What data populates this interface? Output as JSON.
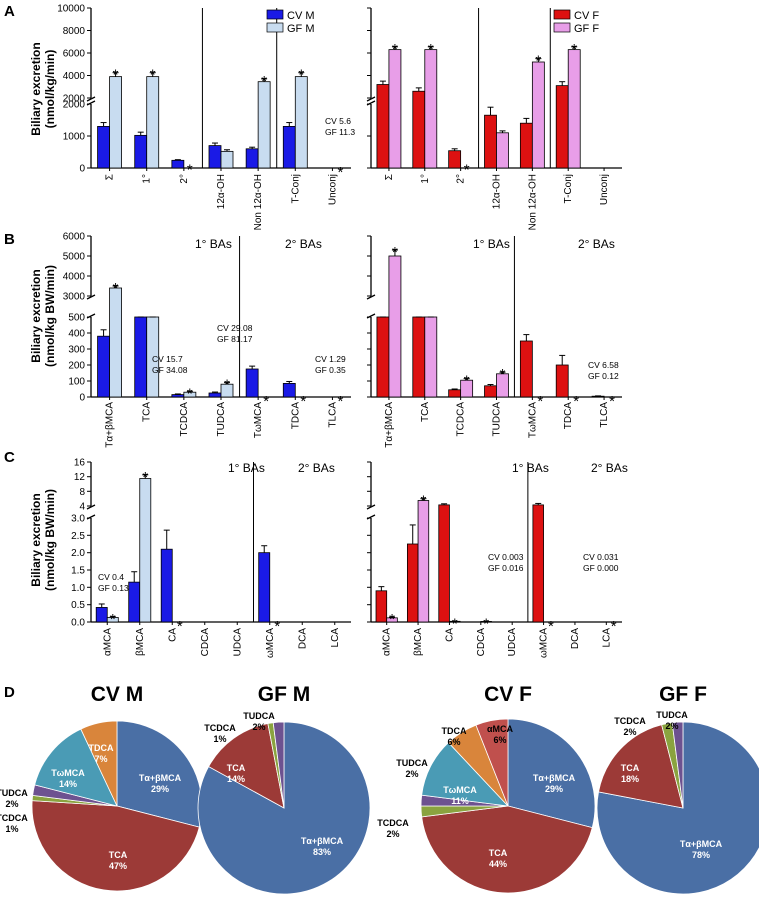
{
  "colors": {
    "cv_m": "#1a1ae6",
    "gf_m": "#c8dcf0",
    "cv_f": "#dd1111",
    "gf_f": "#e89ee8",
    "pie": {
      "Tα+βMCA": "#4a6fa5",
      "TCA": "#9c3a37",
      "TCDCA": "#8aa33f",
      "TUDCA": "#6d5290",
      "TωMCA": "#4a9bb5",
      "TDCA": "#d9853b",
      "αMCA": "#c0504d"
    }
  },
  "panel_letters": {
    "a": "A",
    "b": "B",
    "c": "C",
    "d": "D"
  },
  "axis_labels": {
    "a_y": [
      "Biliary excretion",
      "(nmol/kg/min)"
    ],
    "b_y": [
      "Biliary excretion",
      "(nmol/kg BW/min)"
    ],
    "c_y": [
      "Biliary excretion",
      "(nmol/kg BW/min)"
    ]
  },
  "section_labels": {
    "primary": "1° BAs",
    "secondary": "2° BAs"
  },
  "chart_data": [
    {
      "id": "A-male",
      "type": "bar",
      "title": "",
      "ylabel": "Biliary excretion (nmol/kg/min)",
      "legend": [
        "CV M",
        "GF M"
      ],
      "categories": [
        "Σ",
        "1°",
        "2°",
        "12α-OH",
        "Non 12α-OH",
        "T-Conj",
        "Unconj"
      ],
      "y_upper_ticks": [
        "10000",
        "8000",
        "6000",
        "4000",
        "2000"
      ],
      "y_lower_ticks": [
        "2000",
        "1000",
        "0"
      ],
      "y_break": {
        "lower": [
          0,
          2000
        ],
        "upper": [
          2000,
          10000
        ]
      },
      "series": [
        {
          "name": "CV M",
          "values": [
            1300,
            1020,
            240,
            700,
            600,
            1300,
            0
          ],
          "errors": [
            120,
            100,
            20,
            80,
            50,
            120,
            0
          ]
        },
        {
          "name": "GF M",
          "values": [
            3900,
            3900,
            10,
            520,
            3450,
            3900,
            0
          ],
          "errors": [
            350,
            350,
            0,
            50,
            250,
            350,
            0
          ]
        }
      ],
      "significance": [
        true,
        true,
        true,
        false,
        true,
        true,
        true
      ],
      "dividers_after": [
        2,
        4
      ],
      "annotations": [
        [
          "CV 5.6",
          "GF 11.3"
        ]
      ]
    },
    {
      "id": "A-female",
      "type": "bar",
      "title": "",
      "legend": [
        "CV F",
        "GF F"
      ],
      "categories": [
        "Σ",
        "1°",
        "2°",
        "12α-OH",
        "Non 12α-OH",
        "T-Conj",
        "Unconj"
      ],
      "y_break": {
        "lower": [
          0,
          2000
        ],
        "upper": [
          2000,
          10000
        ]
      },
      "series": [
        {
          "name": "CV F",
          "values": [
            3200,
            2600,
            540,
            1650,
            1400,
            3100,
            0
          ],
          "errors": [
            300,
            300,
            60,
            250,
            150,
            350,
            0
          ]
        },
        {
          "name": "GF F",
          "values": [
            6300,
            6300,
            10,
            1100,
            5200,
            6300,
            0
          ],
          "errors": [
            250,
            250,
            0,
            60,
            300,
            250,
            0
          ]
        }
      ],
      "significance": [
        true,
        true,
        true,
        false,
        true,
        true,
        false
      ],
      "dividers_after": [
        2,
        4
      ]
    },
    {
      "id": "B-male",
      "type": "bar",
      "ylabel": "Biliary excretion (nmol/kg BW/min)",
      "categories": [
        "Tα+βMCA",
        "TCA",
        "TCDCA",
        "TUDCA",
        "TωMCA",
        "TDCA",
        "TLCA"
      ],
      "y_upper_ticks": [
        "6000",
        "5000",
        "4000",
        "3000"
      ],
      "y_lower_ticks": [
        "500",
        "400",
        "300",
        "200",
        "100",
        "0"
      ],
      "y_break": {
        "lower": [
          0,
          500
        ],
        "upper": [
          3000,
          6000
        ]
      },
      "series": [
        {
          "name": "CV M",
          "values": [
            380,
            510,
            15,
            25,
            175,
            85,
            0
          ],
          "errors": [
            40,
            15,
            4,
            6,
            18,
            12,
            0
          ]
        },
        {
          "name": "GF M",
          "values": [
            3400,
            500,
            30,
            80,
            0,
            0,
            0
          ],
          "errors": [
            100,
            10,
            5,
            10,
            0,
            0,
            0
          ]
        }
      ],
      "significance": [
        true,
        false,
        true,
        true,
        true,
        true,
        true
      ],
      "dividers_after": [
        3
      ],
      "annotations": [
        [
          "CV 15.7",
          "GF 34.08"
        ],
        [
          "CV 29.08",
          "GF 81.17"
        ],
        [
          "CV 1.29",
          "GF 0.35"
        ]
      ]
    },
    {
      "id": "B-female",
      "type": "bar",
      "categories": [
        "Tα+βMCA",
        "TCA",
        "TCDCA",
        "TUDCA",
        "TωMCA",
        "TDCA",
        "TLCA"
      ],
      "y_break": {
        "lower": [
          0,
          500
        ],
        "upper": [
          3000,
          6000
        ]
      },
      "series": [
        {
          "name": "CV F",
          "values": [
            520,
            1700,
            45,
            70,
            350,
            200,
            5
          ],
          "errors": [
            20,
            100,
            5,
            8,
            40,
            60,
            2
          ]
        },
        {
          "name": "GF F",
          "values": [
            5000,
            1450,
            105,
            145,
            0,
            0,
            0
          ],
          "errors": [
            300,
            80,
            10,
            10,
            0,
            0,
            0
          ]
        }
      ],
      "significance": [
        true,
        false,
        true,
        true,
        true,
        true,
        true
      ],
      "dividers_after": [
        3
      ],
      "annotations": [
        [
          "CV 6.58",
          "GF 0.12"
        ]
      ]
    },
    {
      "id": "C-male",
      "type": "bar",
      "ylabel": "Biliary excretion (nmol/kg BW/min)",
      "categories": [
        "αMCA",
        "βMCA",
        "CA",
        "CDCA",
        "UDCA",
        "ωMCA",
        "DCA",
        "LCA"
      ],
      "y_upper_ticks": [
        "16",
        "12",
        "8",
        "4"
      ],
      "y_lower_ticks": [
        "3.0",
        "2.5",
        "2.0",
        "1.5",
        "1.0",
        "0.5",
        "0.0"
      ],
      "y_break": {
        "lower": [
          0,
          3
        ],
        "upper": [
          4,
          16
        ]
      },
      "series": [
        {
          "name": "CV M",
          "values": [
            0.42,
            1.15,
            2.1,
            0.005,
            0.005,
            2.0,
            0.005,
            0
          ],
          "errors": [
            0.1,
            0.3,
            0.55,
            0,
            0,
            0.2,
            0,
            0
          ]
        },
        {
          "name": "GF M",
          "values": [
            0.13,
            11.5,
            0,
            0,
            0,
            0,
            0,
            0
          ],
          "errors": [
            0.02,
            1.0,
            0,
            0,
            0,
            0,
            0,
            0
          ]
        }
      ],
      "significance": [
        true,
        true,
        true,
        false,
        false,
        true,
        false,
        false
      ],
      "dividers_after": [
        4
      ],
      "annotations": [
        [
          "CV 0.4",
          "GF 0.13"
        ]
      ]
    },
    {
      "id": "C-female",
      "type": "bar",
      "categories": [
        "αMCA",
        "βMCA",
        "CA",
        "CDCA",
        "UDCA",
        "ωMCA",
        "DCA",
        "LCA"
      ],
      "y_break": {
        "lower": [
          0,
          3
        ],
        "upper": [
          4,
          16
        ]
      },
      "series": [
        {
          "name": "CV F",
          "values": [
            0.9,
            2.25,
            4.3,
            0.003,
            0.003,
            4.3,
            0.01,
            0.01
          ],
          "errors": [
            0.12,
            0.55,
            0.3,
            0,
            0,
            0.4,
            0,
            0
          ]
        },
        {
          "name": "GF F",
          "values": [
            0.12,
            5.5,
            0.02,
            0.016,
            0,
            0,
            0,
            0
          ],
          "errors": [
            0.02,
            0.5,
            0,
            0,
            0,
            0,
            0,
            0
          ]
        }
      ],
      "significance": [
        true,
        true,
        true,
        true,
        false,
        true,
        false,
        true
      ],
      "dividers_after": [
        4
      ],
      "annotations": [
        [
          "CV 0.003",
          "GF 0.016"
        ],
        [
          "CV 0.031",
          "GF 0.000"
        ]
      ]
    },
    {
      "id": "D-CVM",
      "type": "pie",
      "title": "CV M",
      "slices": [
        {
          "label": "Tα+βMCA",
          "pct": "29%",
          "value": 29
        },
        {
          "label": "TCA",
          "pct": "47%",
          "value": 47
        },
        {
          "label": "TCDCA",
          "pct": "1%",
          "value": 1
        },
        {
          "label": "TUDCA",
          "pct": "2%",
          "value": 2
        },
        {
          "label": "TωMCA",
          "pct": "14%",
          "value": 14
        },
        {
          "label": "TDCA",
          "pct": "7%",
          "value": 7
        }
      ]
    },
    {
      "id": "D-GFM",
      "type": "pie",
      "title": "GF M",
      "slices": [
        {
          "label": "Tα+βMCA",
          "pct": "83%",
          "value": 83
        },
        {
          "label": "TCA",
          "pct": "14%",
          "value": 14
        },
        {
          "label": "TCDCA",
          "pct": "1%",
          "value": 1
        },
        {
          "label": "TUDCA",
          "pct": "2%",
          "value": 2
        }
      ]
    },
    {
      "id": "D-CVF",
      "type": "pie",
      "title": "CV F",
      "slices": [
        {
          "label": "Tα+βMCA",
          "pct": "29%",
          "value": 29
        },
        {
          "label": "TCA",
          "pct": "44%",
          "value": 44
        },
        {
          "label": "TCDCA",
          "pct": "2%",
          "value": 2
        },
        {
          "label": "TUDCA",
          "pct": "2%",
          "value": 2
        },
        {
          "label": "TωMCA",
          "pct": "11%",
          "value": 11
        },
        {
          "label": "TDCA",
          "pct": "6%",
          "value": 6
        },
        {
          "label": "αMCA",
          "pct": "6%",
          "value": 6
        }
      ]
    },
    {
      "id": "D-GFF",
      "type": "pie",
      "title": "GF F",
      "slices": [
        {
          "label": "Tα+βMCA",
          "pct": "78%",
          "value": 78
        },
        {
          "label": "TCA",
          "pct": "18%",
          "value": 18
        },
        {
          "label": "TCDCA",
          "pct": "2%",
          "value": 2
        },
        {
          "label": "TUDCA",
          "pct": "2%",
          "value": 2
        }
      ]
    }
  ]
}
